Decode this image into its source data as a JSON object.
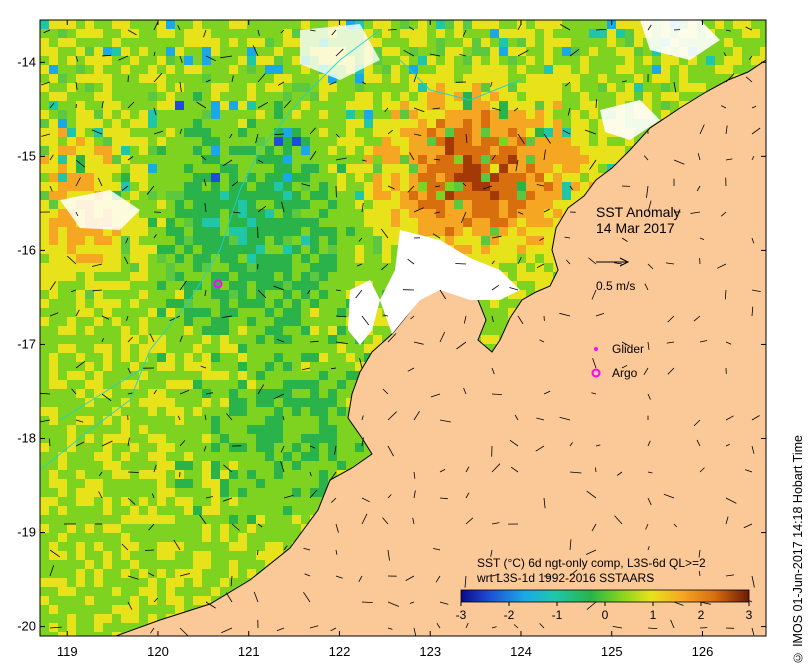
{
  "title": "SST Anomaly",
  "date": "14 Mar 2017",
  "scale_arrow_label": "0.5 m/s",
  "legend": {
    "glider_label": "Glider",
    "argo_label": "Argo",
    "glider_color": "#ff00ff",
    "argo_color": "#ff00ff"
  },
  "product_line1": "SST (°C) 6d ngt-only comp, L3S-6d QL>=2",
  "product_line2": "wrt L3S-1d 1992-2016 SSTAARS",
  "credit": "© IMOS 01-Jun-2017 14:18 Hobart Time",
  "axes": {
    "x_ticks": [
      "119",
      "120",
      "121",
      "122",
      "123",
      "124",
      "125",
      "126"
    ],
    "y_ticks": [
      "-14",
      "-15",
      "-16",
      "-17",
      "-18",
      "-19",
      "-20"
    ],
    "lon_range": [
      118.7,
      126.7
    ],
    "lat_range": [
      -20.1,
      -13.55
    ]
  },
  "colorbar": {
    "range": [
      -3,
      3
    ],
    "ticks": [
      "-3",
      "-2",
      "-1",
      "0",
      "1",
      "2",
      "3"
    ],
    "colors": [
      "#0a0a8c",
      "#1d4fd6",
      "#1aa9e6",
      "#1fc7a8",
      "#29b34a",
      "#7ed321",
      "#e8e21a",
      "#f5a623",
      "#d96e0f",
      "#a33a06",
      "#6b1a04"
    ]
  },
  "colors": {
    "land": "#fbc898",
    "ocean_base": "#5cc840",
    "coastline": "#000000"
  }
}
